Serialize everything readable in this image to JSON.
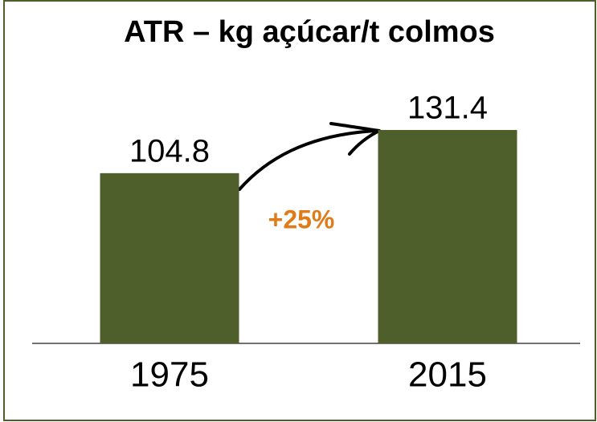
{
  "chart_data": {
    "type": "bar",
    "title": "ATR – kg açúcar/t colmos",
    "categories": [
      "1975",
      "2015"
    ],
    "values": [
      104.8,
      131.4
    ],
    "color": "#4e5f2b",
    "annotations": [
      {
        "text": "+25%",
        "color": "#e07b1a"
      }
    ]
  }
}
